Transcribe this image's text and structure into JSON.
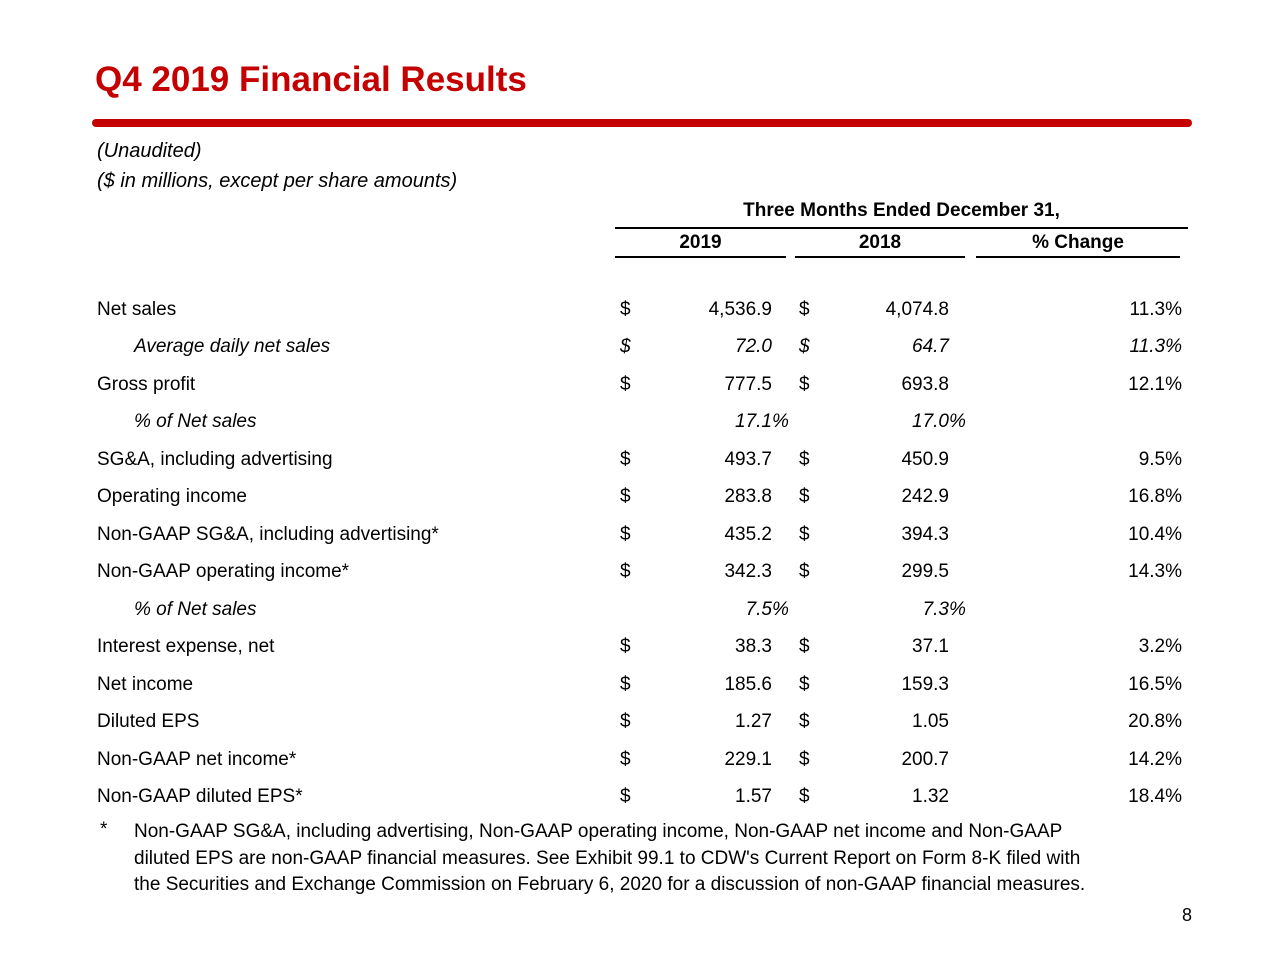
{
  "slide": {
    "title": "Q4 2019 Financial Results",
    "subtitle_line1": "(Unaudited)",
    "subtitle_line2": "($ in millions, except per share amounts)",
    "accent_color": "#C40000",
    "page_number": "8"
  },
  "table": {
    "span_header": "Three Months Ended December 31,",
    "columns": [
      "2019",
      "2018",
      "% Change"
    ],
    "rows": [
      {
        "label": "Net sales",
        "indent": false,
        "italic": false,
        "d1": "$",
        "v1": "4,536.9",
        "p1": "",
        "d2": "$",
        "v2": "4,074.8",
        "p2": "",
        "chg": "11.3%"
      },
      {
        "label": "Average daily net sales",
        "indent": true,
        "italic": true,
        "d1": "$",
        "v1": "72.0",
        "p1": "",
        "d2": "$",
        "v2": "64.7",
        "p2": "",
        "chg": "11.3%"
      },
      {
        "label": "Gross profit",
        "indent": false,
        "italic": false,
        "d1": "$",
        "v1": "777.5",
        "p1": "",
        "d2": "$",
        "v2": "693.8",
        "p2": "",
        "chg": "12.1%"
      },
      {
        "label": "% of Net sales",
        "indent": true,
        "italic": true,
        "d1": "",
        "v1": "17.1",
        "p1": "%",
        "d2": "",
        "v2": "17.0",
        "p2": "%",
        "chg": ""
      },
      {
        "label": "SG&A, including advertising",
        "indent": false,
        "italic": false,
        "d1": "$",
        "v1": "493.7",
        "p1": "",
        "d2": "$",
        "v2": "450.9",
        "p2": "",
        "chg": "9.5%"
      },
      {
        "label": "Operating income",
        "indent": false,
        "italic": false,
        "d1": "$",
        "v1": "283.8",
        "p1": "",
        "d2": "$",
        "v2": "242.9",
        "p2": "",
        "chg": "16.8%"
      },
      {
        "label": "Non-GAAP SG&A, including advertising*",
        "indent": false,
        "italic": false,
        "d1": "$",
        "v1": "435.2",
        "p1": "",
        "d2": "$",
        "v2": "394.3",
        "p2": "",
        "chg": "10.4%"
      },
      {
        "label": "Non-GAAP operating income*",
        "indent": false,
        "italic": false,
        "d1": "$",
        "v1": "342.3",
        "p1": "",
        "d2": "$",
        "v2": "299.5",
        "p2": "",
        "chg": "14.3%"
      },
      {
        "label": "% of Net sales",
        "indent": true,
        "italic": true,
        "d1": "",
        "v1": "7.5",
        "p1": "%",
        "d2": "",
        "v2": "7.3",
        "p2": "%",
        "chg": ""
      },
      {
        "label": "Interest expense, net",
        "indent": false,
        "italic": false,
        "d1": "$",
        "v1": "38.3",
        "p1": "",
        "d2": "$",
        "v2": "37.1",
        "p2": "",
        "chg": "3.2%"
      },
      {
        "label": "Net income",
        "indent": false,
        "italic": false,
        "d1": "$",
        "v1": "185.6",
        "p1": "",
        "d2": "$",
        "v2": "159.3",
        "p2": "",
        "chg": "16.5%"
      },
      {
        "label": "Diluted EPS",
        "indent": false,
        "italic": false,
        "d1": "$",
        "v1": "1.27",
        "p1": "",
        "d2": "$",
        "v2": "1.05",
        "p2": "",
        "chg": "20.8%"
      },
      {
        "label": "Non-GAAP net income*",
        "indent": false,
        "italic": false,
        "d1": "$",
        "v1": "229.1",
        "p1": "",
        "d2": "$",
        "v2": "200.7",
        "p2": "",
        "chg": "14.2%"
      },
      {
        "label": "Non-GAAP diluted EPS*",
        "indent": false,
        "italic": false,
        "d1": "$",
        "v1": "1.57",
        "p1": "",
        "d2": "$",
        "v2": "1.32",
        "p2": "",
        "chg": "18.4%"
      }
    ]
  },
  "footnote": {
    "marker": "*",
    "lines": [
      "Non-GAAP SG&A, including advertising, Non-GAAP operating income, Non-GAAP net income and Non-GAAP",
      "diluted EPS are non-GAAP financial measures. See Exhibit 99.1 to CDW's Current Report on Form 8-K filed with",
      "the Securities and Exchange Commission on February 6, 2020 for a discussion of non-GAAP financial measures."
    ]
  }
}
